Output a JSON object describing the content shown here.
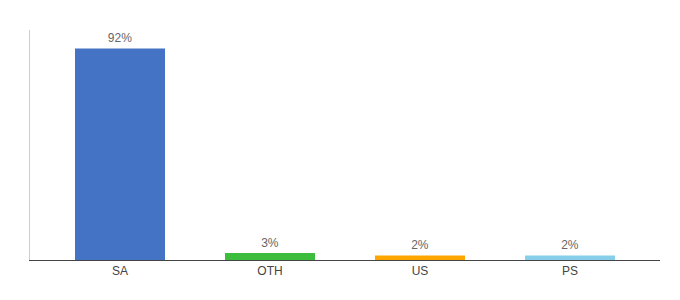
{
  "chart_data": {
    "type": "bar",
    "categories": [
      "SA",
      "OTH",
      "US",
      "PS"
    ],
    "values": [
      92,
      3,
      2,
      2
    ],
    "value_labels": [
      "92%",
      "3%",
      "2%",
      "2%"
    ],
    "colors": [
      "#4472C4",
      "#3DBD3D",
      "#FFA500",
      "#87CEEB"
    ],
    "ylim": [
      0,
      100
    ],
    "data_labels": true,
    "tick_labels": "x",
    "grid": false
  }
}
